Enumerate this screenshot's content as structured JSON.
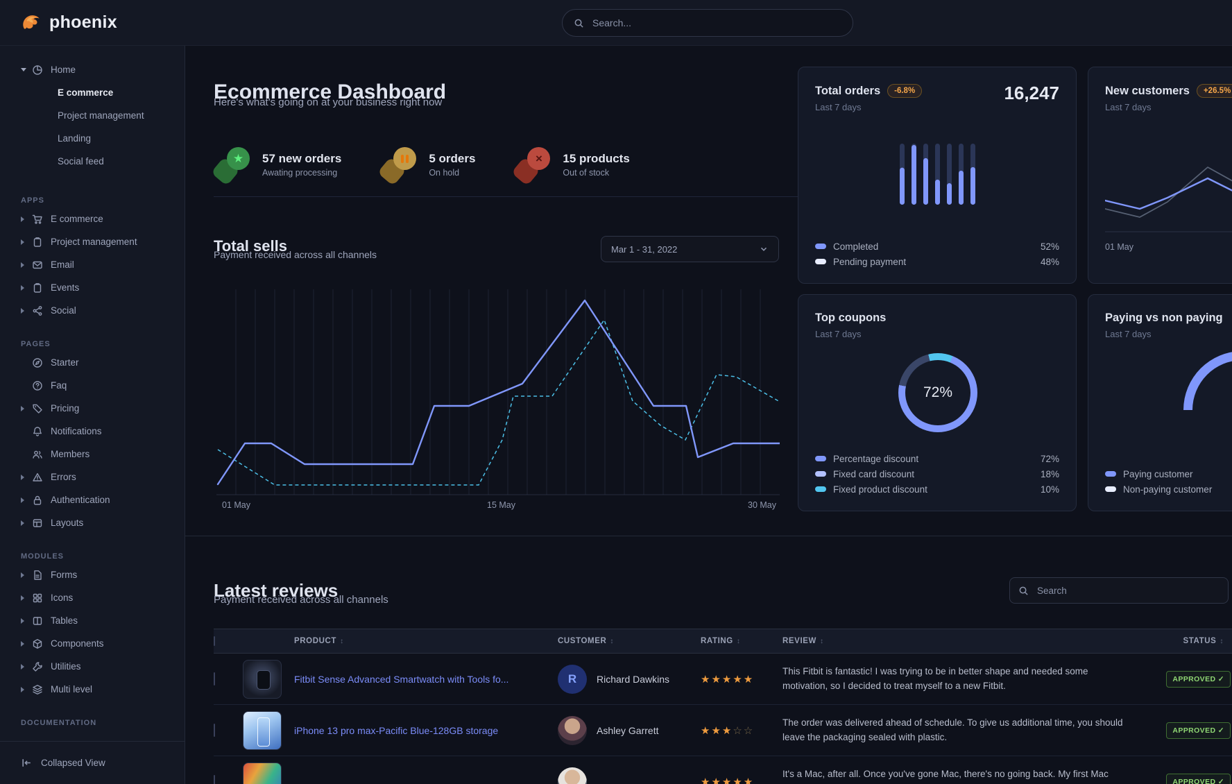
{
  "brand": {
    "name": "phoenix"
  },
  "navbar": {
    "search_placeholder": "Search..."
  },
  "icons": {
    "sort": "↕",
    "star_filled": "★",
    "star_empty": "☆",
    "check": "✓",
    "star": "★",
    "x": "×"
  },
  "colors": {
    "accent_blue": "#8097fb",
    "accent_cyan": "#4cc0e8",
    "bar_dark": "#2b3657",
    "light_swatch": "#e8edff",
    "mid_swatch": "#b3c1ff",
    "gray_line": "#566073",
    "warning_text": "#f5a649",
    "success_text": "#8fd673",
    "star": "#ee9b3f",
    "link": "#7b8cf8",
    "donut_dark": "#3a4668"
  },
  "sidebar": {
    "home": {
      "label": "Home",
      "icon": "pie",
      "children": [
        {
          "label": "E commerce",
          "active": true
        },
        {
          "label": "Project management",
          "active": false
        },
        {
          "label": "Landing",
          "active": false
        },
        {
          "label": "Social feed",
          "active": false
        }
      ]
    },
    "sections": [
      {
        "label": "APPS",
        "items": [
          {
            "label": "E commerce",
            "icon": "cart",
            "caret": true
          },
          {
            "label": "Project management",
            "icon": "clipboard",
            "caret": true
          },
          {
            "label": "Email",
            "icon": "mail",
            "caret": true
          },
          {
            "label": "Events",
            "icon": "clipboard",
            "caret": true
          },
          {
            "label": "Social",
            "icon": "share",
            "caret": true
          }
        ]
      },
      {
        "label": "PAGES",
        "items": [
          {
            "label": "Starter",
            "icon": "compass",
            "caret": false
          },
          {
            "label": "Faq",
            "icon": "question",
            "caret": false
          },
          {
            "label": "Pricing",
            "icon": "tag",
            "caret": true
          },
          {
            "label": "Notifications",
            "icon": "bell",
            "caret": false
          },
          {
            "label": "Members",
            "icon": "users",
            "caret": false
          },
          {
            "label": "Errors",
            "icon": "warning",
            "caret": true
          },
          {
            "label": "Authentication",
            "icon": "lock",
            "caret": true
          },
          {
            "label": "Layouts",
            "icon": "layout",
            "caret": true
          }
        ]
      },
      {
        "label": "MODULES",
        "items": [
          {
            "label": "Forms",
            "icon": "file",
            "caret": true
          },
          {
            "label": "Icons",
            "icon": "grid",
            "caret": true
          },
          {
            "label": "Tables",
            "icon": "table",
            "caret": true
          },
          {
            "label": "Components",
            "icon": "box",
            "caret": true
          },
          {
            "label": "Utilities",
            "icon": "wrench",
            "caret": true
          },
          {
            "label": "Multi level",
            "icon": "layers",
            "caret": true
          }
        ]
      },
      {
        "label": "DOCUMENTATION",
        "items": []
      }
    ],
    "footer": {
      "label": "Collapsed View"
    }
  },
  "dashboard": {
    "title": "Ecommerce Dashboard",
    "subtitle": "Here's what's going on at your business right now",
    "stats": [
      {
        "value": "57 new orders",
        "caption": "Awating processing",
        "theme": "success",
        "glyph": "star"
      },
      {
        "value": "5 orders",
        "caption": "On hold",
        "theme": "warning",
        "glyph": "pause"
      },
      {
        "value": "15 products",
        "caption": "Out of stock",
        "theme": "danger",
        "glyph": "x"
      }
    ],
    "total_sells": {
      "title": "Total sells",
      "subtitle": "Payment received across all channels",
      "date_range": "Mar 1 - 31, 2022",
      "x_ticks": [
        "01 May",
        "15 May",
        "30 May"
      ]
    },
    "cards": {
      "total_orders": {
        "title": "Total orders",
        "badge": "-6.8%",
        "period": "Last 7 days",
        "value": "16,247",
        "legend": [
          {
            "label": "Completed",
            "value": "52%",
            "color": "#8097fb"
          },
          {
            "label": "Pending payment",
            "value": "48%",
            "color": "#e8edff"
          }
        ]
      },
      "new_customers": {
        "title": "New customers",
        "badge": "+26.5%",
        "period": "Last 7 days",
        "x_tick": "01 May"
      },
      "top_coupons": {
        "title": "Top coupons",
        "period": "Last 7 days",
        "center_label": "72%",
        "legend": [
          {
            "label": "Percentage discount",
            "value": "72%",
            "color": "#8097fb"
          },
          {
            "label": "Fixed card discount",
            "value": "18%",
            "color": "#b3c1ff"
          },
          {
            "label": "Fixed product discount",
            "value": "10%",
            "color": "#52c6f0"
          }
        ]
      },
      "paying": {
        "title": "Paying vs non paying",
        "period": "Last 7 days",
        "legend": [
          {
            "label": "Paying customer",
            "value": "",
            "color": "#8097fb"
          },
          {
            "label": "Non-paying customer",
            "value": "",
            "color": "#e8edff"
          }
        ]
      }
    }
  },
  "reviews": {
    "title": "Latest reviews",
    "subtitle": "Payment received across all channels",
    "search_placeholder": "Search",
    "columns": [
      "PRODUCT",
      "CUSTOMER",
      "RATING",
      "REVIEW",
      "STATUS"
    ],
    "rows": [
      {
        "product": "Fitbit Sense Advanced Smartwatch with Tools fo...",
        "thumb": "watch",
        "customer": "Richard Dawkins",
        "avatar": {
          "type": "initial",
          "initial": "R"
        },
        "rating": 5,
        "review": "This Fitbit is fantastic! I was trying to be in better shape and needed some motivation, so I decided to treat myself to a new Fitbit.",
        "status": "APPROVED"
      },
      {
        "product": "iPhone 13 pro max-Pacific Blue-128GB storage",
        "thumb": "iphone",
        "customer": "Ashley Garrett",
        "avatar": {
          "type": "photo1"
        },
        "rating": 3,
        "review": "The order was delivered ahead of schedule. To give us additional time, you should leave the packaging sealed with plastic.",
        "status": "APPROVED"
      },
      {
        "product": "",
        "thumb": "mac",
        "customer": "",
        "avatar": {
          "type": "photo2"
        },
        "rating": 5,
        "review": "It's a Mac, after all. Once you've gone Mac, there's no going back. My first Mac lasted",
        "status": "APPROVED"
      }
    ]
  },
  "chart_data": [
    {
      "id": "total_sells",
      "type": "line",
      "title": "Total sells",
      "x_ticks": [
        "01 May",
        "15 May",
        "30 May"
      ],
      "grid": "vertical-daily",
      "series": [
        {
          "name": "current",
          "style": "solid",
          "color": "#8097fb",
          "points": [
            [
              2,
              285
            ],
            [
              41,
              226
            ],
            [
              79,
              226
            ],
            [
              127,
              256
            ],
            [
              283,
              256
            ],
            [
              314,
              172
            ],
            [
              364,
              172
            ],
            [
              441,
              140
            ],
            [
              531,
              20
            ],
            [
              630,
              172
            ],
            [
              677,
              172
            ],
            [
              694,
              246
            ],
            [
              745,
              226
            ],
            [
              812,
              226
            ]
          ]
        },
        {
          "name": "previous",
          "style": "dashed",
          "color": "#4cc0e8",
          "points": [
            [
              2,
              235
            ],
            [
              84,
              286
            ],
            [
              378,
              286
            ],
            [
              412,
              221
            ],
            [
              428,
              158
            ],
            [
              484,
              158
            ],
            [
              559,
              48
            ],
            [
              600,
              165
            ],
            [
              640,
              200
            ],
            [
              676,
              221
            ],
            [
              721,
              127
            ],
            [
              749,
              130
            ],
            [
              812,
              166
            ]
          ]
        }
      ]
    },
    {
      "id": "total_orders",
      "type": "bar",
      "stacked": true,
      "value": "16,247",
      "series": [
        {
          "name": "Completed",
          "color": "#8097fb",
          "fractions": [
            0.62,
            1,
            0.78,
            0.42,
            0.36,
            0.57,
            0.63
          ]
        },
        {
          "name": "Pending payment",
          "color": "#2b3657",
          "fractions": [
            1,
            1,
            1,
            1,
            1,
            1,
            1
          ]
        }
      ]
    },
    {
      "id": "new_customers",
      "type": "line",
      "x_tick": "01 May",
      "series": [
        {
          "name": "previous",
          "style": "solid",
          "color": "#566073",
          "points": [
            [
              0,
              74
            ],
            [
              50,
              86
            ],
            [
              90,
              64
            ],
            [
              148,
              14
            ],
            [
              184,
              34
            ],
            [
              230,
              60
            ],
            [
              280,
              84
            ],
            [
              330,
              70
            ]
          ]
        },
        {
          "name": "current",
          "style": "solid",
          "color": "#8097fb",
          "points": [
            [
              0,
              62
            ],
            [
              50,
              74
            ],
            [
              90,
              58
            ],
            [
              148,
              30
            ],
            [
              184,
              48
            ],
            [
              230,
              80
            ],
            [
              280,
              55
            ],
            [
              330,
              60
            ]
          ]
        }
      ]
    },
    {
      "id": "top_coupons",
      "type": "donut",
      "center_label": "72%",
      "start_angle_deg": -14,
      "segments": [
        {
          "label": "Fixed product discount",
          "value": 10,
          "color": "#52c6f0"
        },
        {
          "label": "Percentage discount",
          "value": 72,
          "color": "#8097fb"
        },
        {
          "label": "Fixed card discount",
          "value": 18,
          "color": "#3a4668"
        }
      ]
    },
    {
      "id": "paying_gauge",
      "type": "gauge",
      "shape": "semicircle",
      "segments": [
        {
          "label": "Paying customer",
          "value": 74,
          "color": "#8097fb"
        },
        {
          "label": "Non-paying customer",
          "value": 26,
          "color": "#dbe4ff"
        }
      ]
    }
  ]
}
